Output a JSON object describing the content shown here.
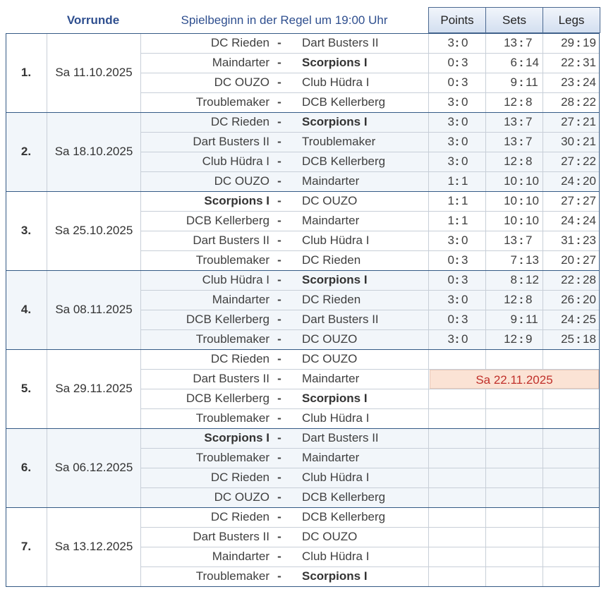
{
  "header": {
    "vorrunde": "Vorrunde",
    "info": "Spielbeginn in der Regel um 19:00 Uhr",
    "points": "Points",
    "sets": "Sets",
    "legs": "Legs"
  },
  "postponed_date": "Sa 22.11.2025",
  "rounds": [
    {
      "num": "1.",
      "date": "Sa 11.10.2025",
      "matches": [
        {
          "home": "DC Rieden",
          "away": "Dart Busters II",
          "bold": "",
          "points": [
            "3",
            "0"
          ],
          "sets": [
            "13",
            "7"
          ],
          "legs": [
            "29",
            "19"
          ]
        },
        {
          "home": "Maindarter",
          "away": "Scorpions I",
          "bold": "away",
          "points": [
            "0",
            "3"
          ],
          "sets": [
            "6",
            "14"
          ],
          "legs": [
            "22",
            "31"
          ]
        },
        {
          "home": "DC OUZO",
          "away": "Club Hüdra I",
          "bold": "",
          "points": [
            "0",
            "3"
          ],
          "sets": [
            "9",
            "11"
          ],
          "legs": [
            "23",
            "24"
          ]
        },
        {
          "home": "Troublemaker",
          "away": "DCB Kellerberg",
          "bold": "",
          "points": [
            "3",
            "0"
          ],
          "sets": [
            "12",
            "8"
          ],
          "legs": [
            "28",
            "22"
          ]
        }
      ]
    },
    {
      "num": "2.",
      "date": "Sa 18.10.2025",
      "matches": [
        {
          "home": "DC Rieden",
          "away": "Scorpions I",
          "bold": "away",
          "points": [
            "3",
            "0"
          ],
          "sets": [
            "13",
            "7"
          ],
          "legs": [
            "27",
            "21"
          ]
        },
        {
          "home": "Dart Busters II",
          "away": "Troublemaker",
          "bold": "",
          "points": [
            "3",
            "0"
          ],
          "sets": [
            "13",
            "7"
          ],
          "legs": [
            "30",
            "21"
          ]
        },
        {
          "home": "Club Hüdra I",
          "away": "DCB Kellerberg",
          "bold": "",
          "points": [
            "3",
            "0"
          ],
          "sets": [
            "12",
            "8"
          ],
          "legs": [
            "27",
            "22"
          ]
        },
        {
          "home": "DC OUZO",
          "away": "Maindarter",
          "bold": "",
          "points": [
            "1",
            "1"
          ],
          "sets": [
            "10",
            "10"
          ],
          "legs": [
            "24",
            "20"
          ]
        }
      ]
    },
    {
      "num": "3.",
      "date": "Sa 25.10.2025",
      "matches": [
        {
          "home": "Scorpions I",
          "away": "DC OUZO",
          "bold": "home",
          "points": [
            "1",
            "1"
          ],
          "sets": [
            "10",
            "10"
          ],
          "legs": [
            "27",
            "27"
          ]
        },
        {
          "home": "DCB Kellerberg",
          "away": "Maindarter",
          "bold": "",
          "points": [
            "1",
            "1"
          ],
          "sets": [
            "10",
            "10"
          ],
          "legs": [
            "24",
            "24"
          ]
        },
        {
          "home": "Dart Busters II",
          "away": "Club Hüdra I",
          "bold": "",
          "points": [
            "3",
            "0"
          ],
          "sets": [
            "13",
            "7"
          ],
          "legs": [
            "31",
            "23"
          ]
        },
        {
          "home": "Troublemaker",
          "away": "DC Rieden",
          "bold": "",
          "points": [
            "0",
            "3"
          ],
          "sets": [
            "7",
            "13"
          ],
          "legs": [
            "20",
            "27"
          ]
        }
      ]
    },
    {
      "num": "4.",
      "date": "Sa 08.11.2025",
      "matches": [
        {
          "home": "Club Hüdra I",
          "away": "Scorpions I",
          "bold": "away",
          "points": [
            "0",
            "3"
          ],
          "sets": [
            "8",
            "12"
          ],
          "legs": [
            "22",
            "28"
          ]
        },
        {
          "home": "Maindarter",
          "away": "DC Rieden",
          "bold": "",
          "points": [
            "3",
            "0"
          ],
          "sets": [
            "12",
            "8"
          ],
          "legs": [
            "26",
            "20"
          ]
        },
        {
          "home": "DCB Kellerberg",
          "away": "Dart Busters II",
          "bold": "",
          "points": [
            "0",
            "3"
          ],
          "sets": [
            "9",
            "11"
          ],
          "legs": [
            "24",
            "25"
          ]
        },
        {
          "home": "Troublemaker",
          "away": "DC OUZO",
          "bold": "",
          "points": [
            "3",
            "0"
          ],
          "sets": [
            "12",
            "9"
          ],
          "legs": [
            "25",
            "18"
          ]
        }
      ]
    },
    {
      "num": "5.",
      "date": "Sa 29.11.2025",
      "matches": [
        {
          "home": "DC Rieden",
          "away": "DC OUZO",
          "bold": "",
          "points": null,
          "sets": null,
          "legs": null
        },
        {
          "home": "Dart Busters II",
          "away": "Maindarter",
          "bold": "",
          "points": null,
          "sets": null,
          "legs": null
        },
        {
          "home": "DCB Kellerberg",
          "away": "Scorpions I",
          "bold": "away",
          "points": null,
          "sets": null,
          "legs": null
        },
        {
          "home": "Troublemaker",
          "away": "Club Hüdra I",
          "bold": "",
          "points": null,
          "sets": null,
          "legs": null
        }
      ]
    },
    {
      "num": "6.",
      "date": "Sa 06.12.2025",
      "matches": [
        {
          "home": "Scorpions I",
          "away": "Dart Busters II",
          "bold": "home",
          "points": null,
          "sets": null,
          "legs": null
        },
        {
          "home": "Troublemaker",
          "away": "Maindarter",
          "bold": "",
          "points": null,
          "sets": null,
          "legs": null
        },
        {
          "home": "DC Rieden",
          "away": "Club Hüdra I",
          "bold": "",
          "points": null,
          "sets": null,
          "legs": null
        },
        {
          "home": "DC OUZO",
          "away": "DCB Kellerberg",
          "bold": "",
          "points": null,
          "sets": null,
          "legs": null
        }
      ]
    },
    {
      "num": "7.",
      "date": "Sa 13.12.2025",
      "matches": [
        {
          "home": "DC Rieden",
          "away": "DCB Kellerberg",
          "bold": "",
          "points": null,
          "sets": null,
          "legs": null
        },
        {
          "home": "Dart Busters II",
          "away": "DC OUZO",
          "bold": "",
          "points": null,
          "sets": null,
          "legs": null
        },
        {
          "home": "Maindarter",
          "away": "Club Hüdra I",
          "bold": "",
          "points": null,
          "sets": null,
          "legs": null
        },
        {
          "home": "Troublemaker",
          "away": "Scorpions I",
          "bold": "away",
          "points": null,
          "sets": null,
          "legs": null
        }
      ]
    }
  ]
}
